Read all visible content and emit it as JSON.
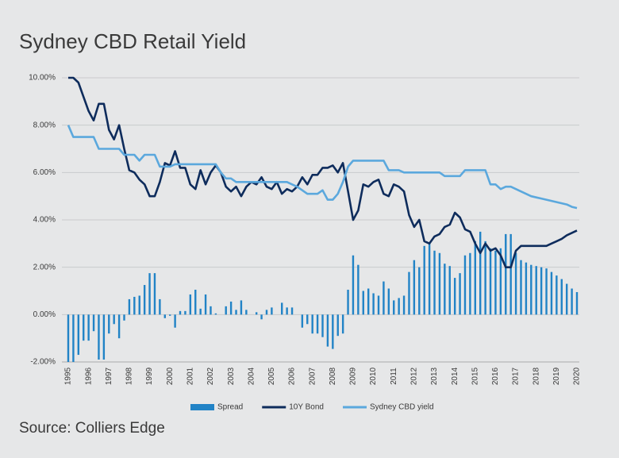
{
  "chart_data": {
    "type": "combo",
    "title": "Sydney CBD Retail Yield",
    "source": "Source: Colliers Edge",
    "categories": [
      "1995",
      null,
      null,
      null,
      "1996",
      null,
      null,
      null,
      "1997",
      null,
      null,
      null,
      "1998",
      null,
      null,
      null,
      "1999",
      null,
      null,
      null,
      "2000",
      null,
      null,
      null,
      "2001",
      null,
      null,
      null,
      "2002",
      null,
      null,
      null,
      "2003",
      null,
      null,
      null,
      "2004",
      null,
      null,
      null,
      "2005",
      null,
      null,
      null,
      "2006",
      null,
      null,
      null,
      "2007",
      null,
      null,
      null,
      "2008",
      null,
      null,
      null,
      "2009",
      null,
      null,
      null,
      "2010",
      null,
      null,
      null,
      "2011",
      null,
      null,
      null,
      "2012",
      null,
      null,
      null,
      "2013",
      null,
      null,
      null,
      "2014",
      null,
      null,
      null,
      "2015",
      null,
      null,
      null,
      "2016",
      null,
      null,
      null,
      "2017",
      null,
      null,
      null,
      "2018",
      null,
      null,
      null,
      "2019",
      null,
      null,
      null,
      "2020"
    ],
    "ylim": [
      -2,
      10
    ],
    "yticks": [
      {
        "value": -2,
        "label": "-2.00%"
      },
      {
        "value": 0,
        "label": "0.00%"
      },
      {
        "value": 2,
        "label": "2.00%"
      },
      {
        "value": 4,
        "label": "4.00%"
      },
      {
        "value": 6,
        "label": "6.00%"
      },
      {
        "value": 8,
        "label": "8.00%"
      },
      {
        "value": 10,
        "label": "10.00%"
      }
    ],
    "grid": true,
    "legend": "bottom",
    "series": [
      {
        "name": "Spread",
        "type": "bar",
        "color": "#2183c6",
        "values": [
          -2.0,
          -2.0,
          -1.7,
          -1.1,
          -1.1,
          -0.7,
          -1.9,
          -1.9,
          -0.8,
          -0.4,
          -1.0,
          -0.25,
          0.65,
          0.75,
          0.8,
          1.25,
          1.75,
          1.75,
          0.65,
          -0.15,
          -0.05,
          -0.55,
          0.15,
          0.15,
          0.85,
          1.05,
          0.25,
          0.85,
          0.35,
          0.05,
          0,
          0.35,
          0.55,
          0.2,
          0.6,
          0.2,
          0,
          0.1,
          -0.2,
          0.2,
          0.3,
          0,
          0.5,
          0.3,
          0.3,
          0,
          -0.55,
          -0.4,
          -0.8,
          -0.8,
          -0.95,
          -1.35,
          -1.45,
          -0.9,
          -0.8,
          1.05,
          2.5,
          2.1,
          1.0,
          1.1,
          0.9,
          0.8,
          1.4,
          1.1,
          0.6,
          0.7,
          0.8,
          1.8,
          2.3,
          2.0,
          2.9,
          3.0,
          2.7,
          2.6,
          2.15,
          2.05,
          1.55,
          1.75,
          2.5,
          2.6,
          3.1,
          3.5,
          3.1,
          2.8,
          2.7,
          2.8,
          3.4,
          3.4,
          2.6,
          2.3,
          2.2,
          2.1,
          2.05,
          2.0,
          1.95,
          1.8,
          1.65,
          1.5,
          1.3,
          1.1,
          0.95
        ]
      },
      {
        "name": "10Y Bond",
        "type": "line",
        "color": "#0e2c5c",
        "values": [
          10.0,
          10.0,
          9.8,
          9.2,
          8.6,
          8.2,
          8.9,
          8.9,
          7.8,
          7.4,
          8.0,
          7.0,
          6.1,
          6.0,
          5.7,
          5.5,
          5.0,
          5.0,
          5.6,
          6.4,
          6.3,
          6.9,
          6.2,
          6.2,
          5.5,
          5.3,
          6.1,
          5.5,
          6.0,
          6.3,
          6.0,
          5.4,
          5.2,
          5.4,
          5.0,
          5.4,
          5.6,
          5.5,
          5.8,
          5.4,
          5.3,
          5.6,
          5.1,
          5.3,
          5.2,
          5.4,
          5.8,
          5.5,
          5.9,
          5.9,
          6.2,
          6.2,
          6.3,
          6.0,
          6.4,
          5.2,
          4.0,
          4.4,
          5.5,
          5.4,
          5.6,
          5.7,
          5.1,
          5.0,
          5.5,
          5.4,
          5.2,
          4.2,
          3.7,
          4.0,
          3.1,
          3.0,
          3.3,
          3.4,
          3.7,
          3.8,
          4.3,
          4.1,
          3.6,
          3.5,
          3.0,
          2.6,
          3.0,
          2.7,
          2.8,
          2.5,
          2.0,
          2.0,
          2.7,
          2.9,
          2.9,
          2.9,
          2.9,
          2.9,
          2.9,
          3.0,
          3.1,
          3.2,
          3.35,
          3.45,
          3.55
        ]
      },
      {
        "name": "Sydney CBD yield",
        "type": "line",
        "color": "#5ba8dd",
        "values": [
          8.0,
          7.5,
          7.5,
          7.5,
          7.5,
          7.5,
          7.0,
          7.0,
          7.0,
          7.0,
          7.0,
          6.75,
          6.75,
          6.75,
          6.5,
          6.75,
          6.75,
          6.75,
          6.25,
          6.25,
          6.25,
          6.35,
          6.35,
          6.35,
          6.35,
          6.35,
          6.35,
          6.35,
          6.35,
          6.35,
          6.0,
          5.75,
          5.75,
          5.6,
          5.6,
          5.6,
          5.6,
          5.6,
          5.6,
          5.6,
          5.6,
          5.6,
          5.6,
          5.6,
          5.5,
          5.4,
          5.25,
          5.1,
          5.1,
          5.1,
          5.25,
          4.85,
          4.85,
          5.1,
          5.6,
          6.25,
          6.5,
          6.5,
          6.5,
          6.5,
          6.5,
          6.5,
          6.5,
          6.1,
          6.1,
          6.1,
          6.0,
          6.0,
          6.0,
          6.0,
          6.0,
          6.0,
          6.0,
          6.0,
          5.85,
          5.85,
          5.85,
          5.85,
          6.1,
          6.1,
          6.1,
          6.1,
          6.1,
          5.5,
          5.5,
          5.3,
          5.4,
          5.4,
          5.3,
          5.2,
          5.1,
          5.0,
          4.95,
          4.9,
          4.85,
          4.8,
          4.75,
          4.7,
          4.65,
          4.55,
          4.5
        ]
      }
    ]
  }
}
